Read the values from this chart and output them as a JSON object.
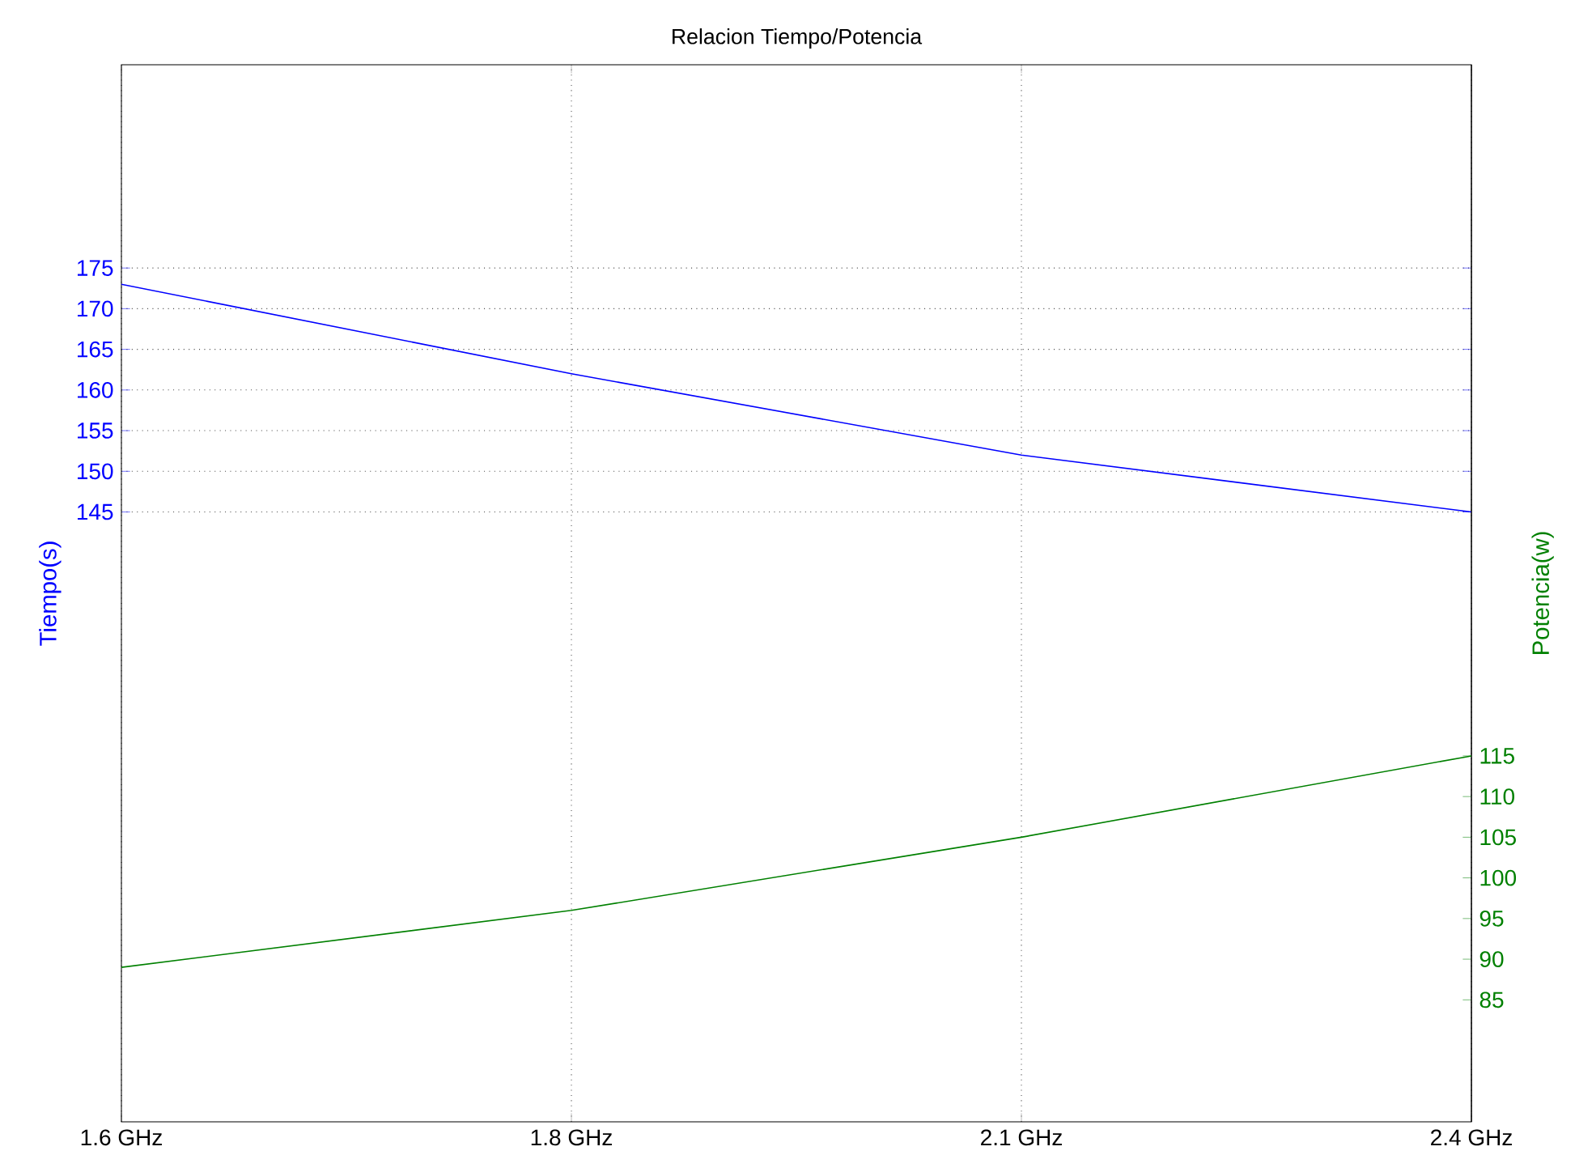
{
  "chart_data": {
    "type": "line",
    "title": "Relacion Tiempo/Potencia",
    "ylabel": "Tiempo(s)",
    "y2label": "Potencia(w)",
    "categories": [
      "1.6 GHz",
      "1.8 GHz",
      "2.1 GHz",
      "2.4 GHz"
    ],
    "series": [
      {
        "color": "#0000ff",
        "values": [
          173,
          162,
          152,
          145
        ]
      },
      {
        "color": "#008000",
        "values": [
          89,
          96,
          105,
          115
        ],
        "axis": "y2"
      }
    ],
    "ylim": [
      70,
      200
    ],
    "yticks": [
      145,
      150,
      155,
      160,
      165,
      170,
      175
    ],
    "y2lim": [
      70,
      200
    ],
    "y2ticks": [
      85,
      90,
      95,
      100,
      105,
      110,
      115
    ],
    "grid": true,
    "marker": "none",
    "line_style": "solid"
  }
}
